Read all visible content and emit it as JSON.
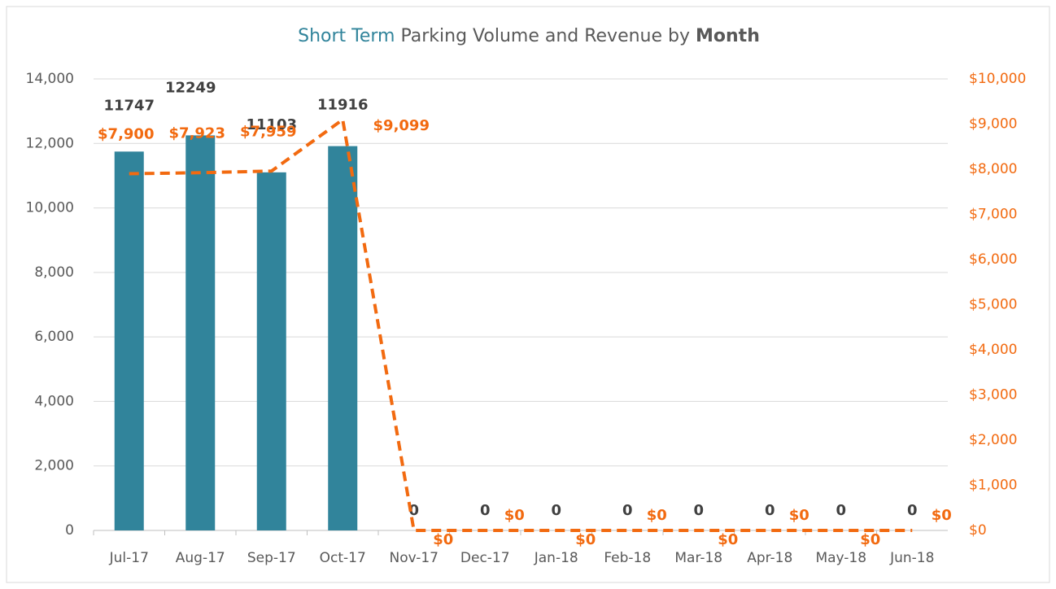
{
  "chart_data": {
    "type": "bar-line",
    "title": [
      "Short Term",
      "Parking Volume and Revenue by",
      "Month"
    ],
    "categories": [
      "Jul-17",
      "Aug-17",
      "Sep-17",
      "Oct-17",
      "Nov-17",
      "Dec-17",
      "Jan-18",
      "Feb-18",
      "Mar-18",
      "Apr-18",
      "May-18",
      "Jun-18"
    ],
    "series": [
      {
        "type": "bar",
        "color": "#31849b",
        "values": [
          11747,
          12249,
          11103,
          11916,
          0,
          0,
          0,
          0,
          0,
          0,
          0,
          0
        ]
      },
      {
        "type": "line",
        "axis": "y2",
        "color": "#f26a10",
        "dashed": true,
        "values": [
          7900,
          7923,
          7959,
          9099,
          0,
          0,
          0,
          0,
          0,
          0,
          0,
          0
        ],
        "value_labels": [
          "$7,900",
          "$7,923",
          "$7,959",
          "$9,099",
          "$0",
          "$0",
          "$0",
          "$0",
          "$0",
          "$0",
          "$0",
          "$0"
        ]
      }
    ],
    "ylim": [
      0,
      14000
    ],
    "yticks": [
      0,
      {
        "value": 2000,
        "label": "2,000"
      },
      {
        "value": 4000,
        "label": "4,000"
      },
      {
        "value": 6000,
        "label": "6,000"
      },
      {
        "value": 8000,
        "label": "8,000"
      },
      {
        "value": 10000,
        "label": "10,000"
      },
      {
        "value": 12000,
        "label": "12,000"
      },
      {
        "value": 14000,
        "label": "14,000"
      }
    ],
    "y2lim": [
      0,
      10000
    ],
    "y2ticks": [
      {
        "value": 0,
        "label": "$0"
      },
      {
        "value": 1000,
        "label": "$1,000"
      },
      {
        "value": 2000,
        "label": "$2,000"
      },
      {
        "value": 3000,
        "label": "$3,000"
      },
      {
        "value": 4000,
        "label": "$4,000"
      },
      {
        "value": 5000,
        "label": "$5,000"
      },
      {
        "value": 6000,
        "label": "$6,000"
      },
      {
        "value": 7000,
        "label": "$7,000"
      },
      {
        "value": 8000,
        "label": "$8,000"
      },
      {
        "value": 9000,
        "label": "$9,000"
      },
      {
        "value": 10000,
        "label": "$10,000"
      }
    ],
    "grid": true
  }
}
